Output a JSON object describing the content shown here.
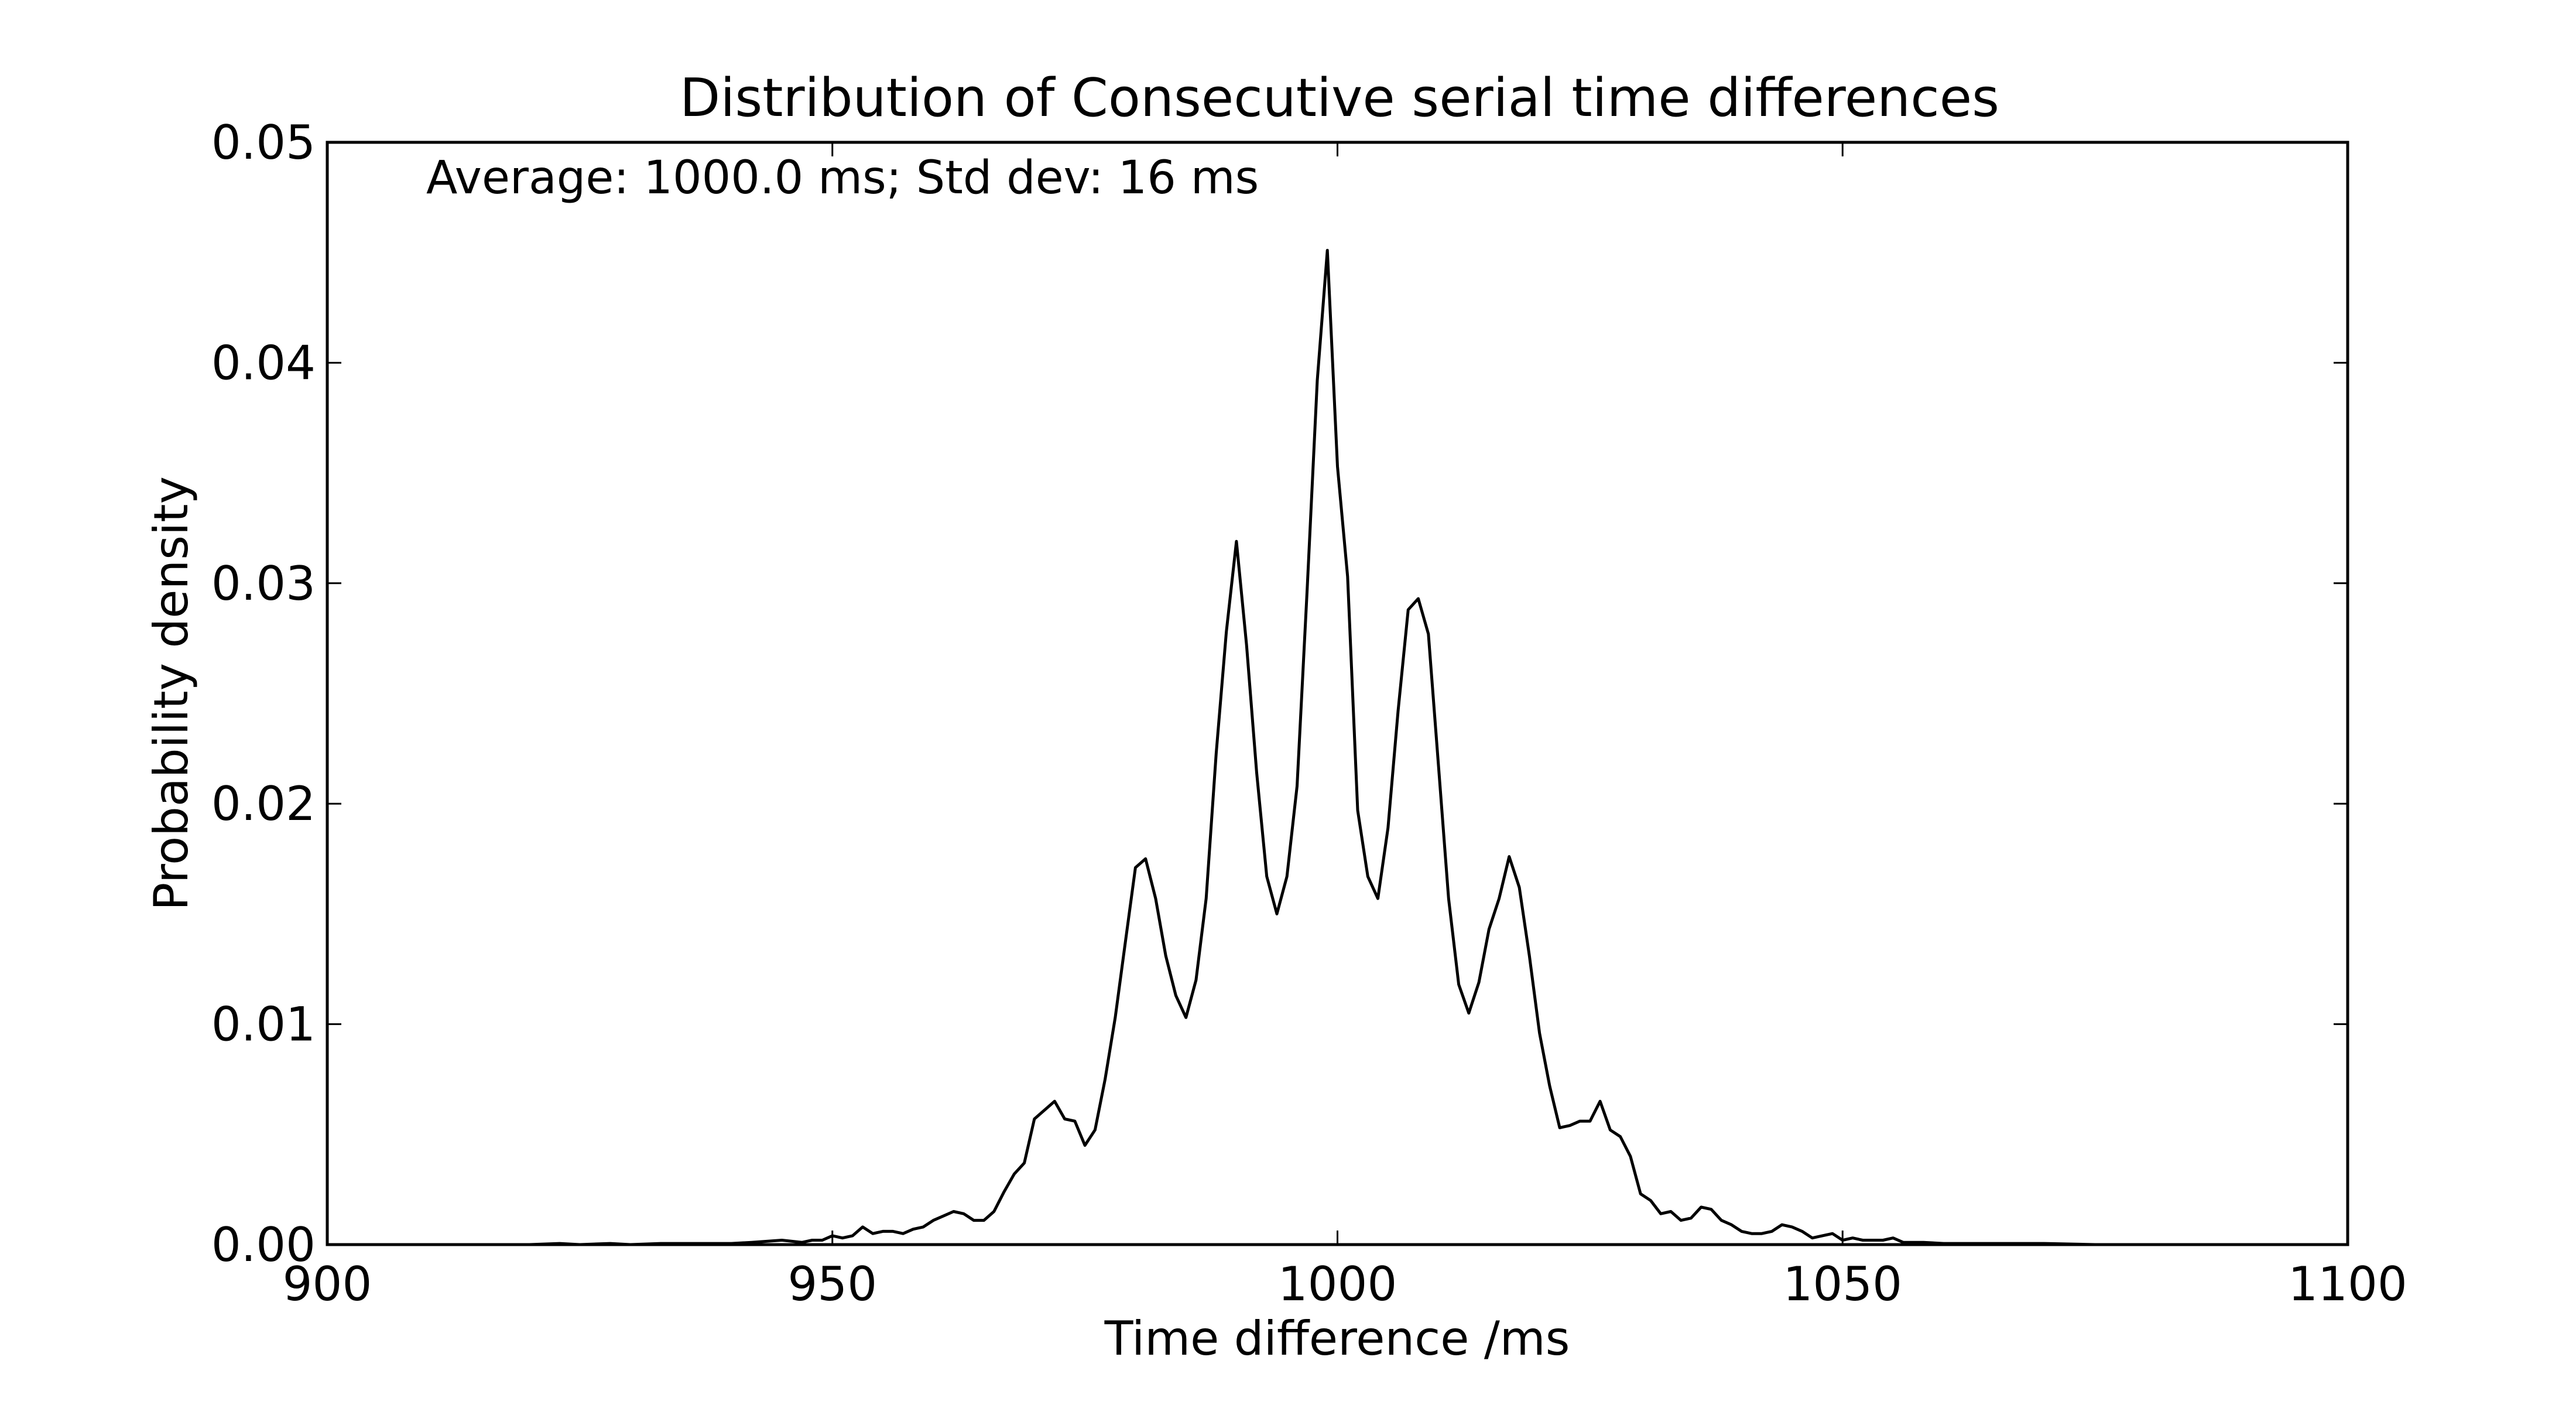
{
  "chart_data": {
    "type": "line",
    "title": "Distribution of Consecutive serial time differences",
    "xlabel": "Time difference /ms",
    "ylabel": "Probability density",
    "annotation": "Average: 1000.0 ms;  Std dev: 16 ms",
    "xlim": [
      900,
      1100
    ],
    "ylim": [
      0,
      0.05
    ],
    "xticks": [
      900,
      950,
      1000,
      1050,
      1100
    ],
    "xtick_labels": [
      "900",
      "950",
      "1000",
      "1050",
      "1100"
    ],
    "yticks": [
      0,
      0.01,
      0.02,
      0.03,
      0.04,
      0.05
    ],
    "ytick_labels": [
      "0.00",
      "0.01",
      "0.02",
      "0.03",
      "0.04",
      "0.05"
    ],
    "grid": false,
    "line_color": "#000000",
    "series": [
      {
        "name": "density",
        "x": [
          900,
          920,
          923,
          925,
          928,
          930,
          933,
          935,
          937,
          940,
          942,
          945,
          947,
          948,
          949,
          950,
          951,
          952,
          953,
          954,
          955,
          956,
          957,
          958,
          959,
          960,
          961,
          962,
          963,
          964,
          965,
          966,
          967,
          968,
          969,
          970,
          971,
          972,
          973,
          974,
          975,
          976,
          977,
          978,
          979,
          980,
          981,
          982,
          983,
          984,
          985,
          986,
          987,
          988,
          989,
          990,
          991,
          992,
          993,
          994,
          995,
          996,
          997,
          998,
          999,
          1000,
          1001,
          1002,
          1003,
          1004,
          1005,
          1006,
          1007,
          1008,
          1009,
          1010,
          1011,
          1012,
          1013,
          1014,
          1015,
          1016,
          1017,
          1018,
          1019,
          1020,
          1021,
          1022,
          1023,
          1024,
          1025,
          1026,
          1027,
          1028,
          1029,
          1030,
          1031,
          1032,
          1033,
          1034,
          1035,
          1036,
          1037,
          1038,
          1039,
          1040,
          1041,
          1042,
          1043,
          1044,
          1045,
          1046,
          1047,
          1048,
          1049,
          1050,
          1051,
          1052,
          1053,
          1054,
          1055,
          1056,
          1058,
          1060,
          1063,
          1066,
          1070,
          1075,
          1080,
          1085,
          1090,
          1100
        ],
        "y": [
          0,
          0,
          5e-05,
          0,
          5e-05,
          0,
          5e-05,
          5e-05,
          5e-05,
          5e-05,
          0.0001,
          0.0002,
          0.0001,
          0.0002,
          0.0002,
          0.0004,
          0.0003,
          0.0004,
          0.0008,
          0.0005,
          0.0006,
          0.0006,
          0.0005,
          0.0007,
          0.0008,
          0.0011,
          0.0013,
          0.0015,
          0.0014,
          0.0011,
          0.0011,
          0.0015,
          0.0024,
          0.0032,
          0.0037,
          0.0057,
          0.0061,
          0.0065,
          0.0057,
          0.0056,
          0.0045,
          0.0052,
          0.0075,
          0.0103,
          0.0137,
          0.0171,
          0.0175,
          0.0157,
          0.0131,
          0.0113,
          0.0103,
          0.012,
          0.0157,
          0.0223,
          0.0278,
          0.0319,
          0.0272,
          0.0214,
          0.0167,
          0.015,
          0.0167,
          0.0208,
          0.0297,
          0.0392,
          0.0451,
          0.0353,
          0.0303,
          0.0197,
          0.0167,
          0.0157,
          0.0189,
          0.0242,
          0.0288,
          0.0293,
          0.0277,
          0.0217,
          0.0157,
          0.0118,
          0.0105,
          0.0119,
          0.0143,
          0.0157,
          0.0176,
          0.0162,
          0.0131,
          0.0096,
          0.0072,
          0.0053,
          0.0054,
          0.0056,
          0.0056,
          0.0065,
          0.0052,
          0.0049,
          0.004,
          0.0023,
          0.002,
          0.0014,
          0.0015,
          0.0011,
          0.0012,
          0.0017,
          0.0016,
          0.0011,
          0.0009,
          0.0006,
          0.0005,
          0.0005,
          0.0006,
          0.0009,
          0.0008,
          0.0006,
          0.0003,
          0.0004,
          0.0005,
          0.0002,
          0.0003,
          0.0002,
          0.0002,
          0.0002,
          0.0003,
          0.0001,
          0.0001,
          5e-05,
          5e-05,
          5e-05,
          5e-05,
          0,
          0,
          0,
          0,
          0
        ]
      }
    ]
  }
}
